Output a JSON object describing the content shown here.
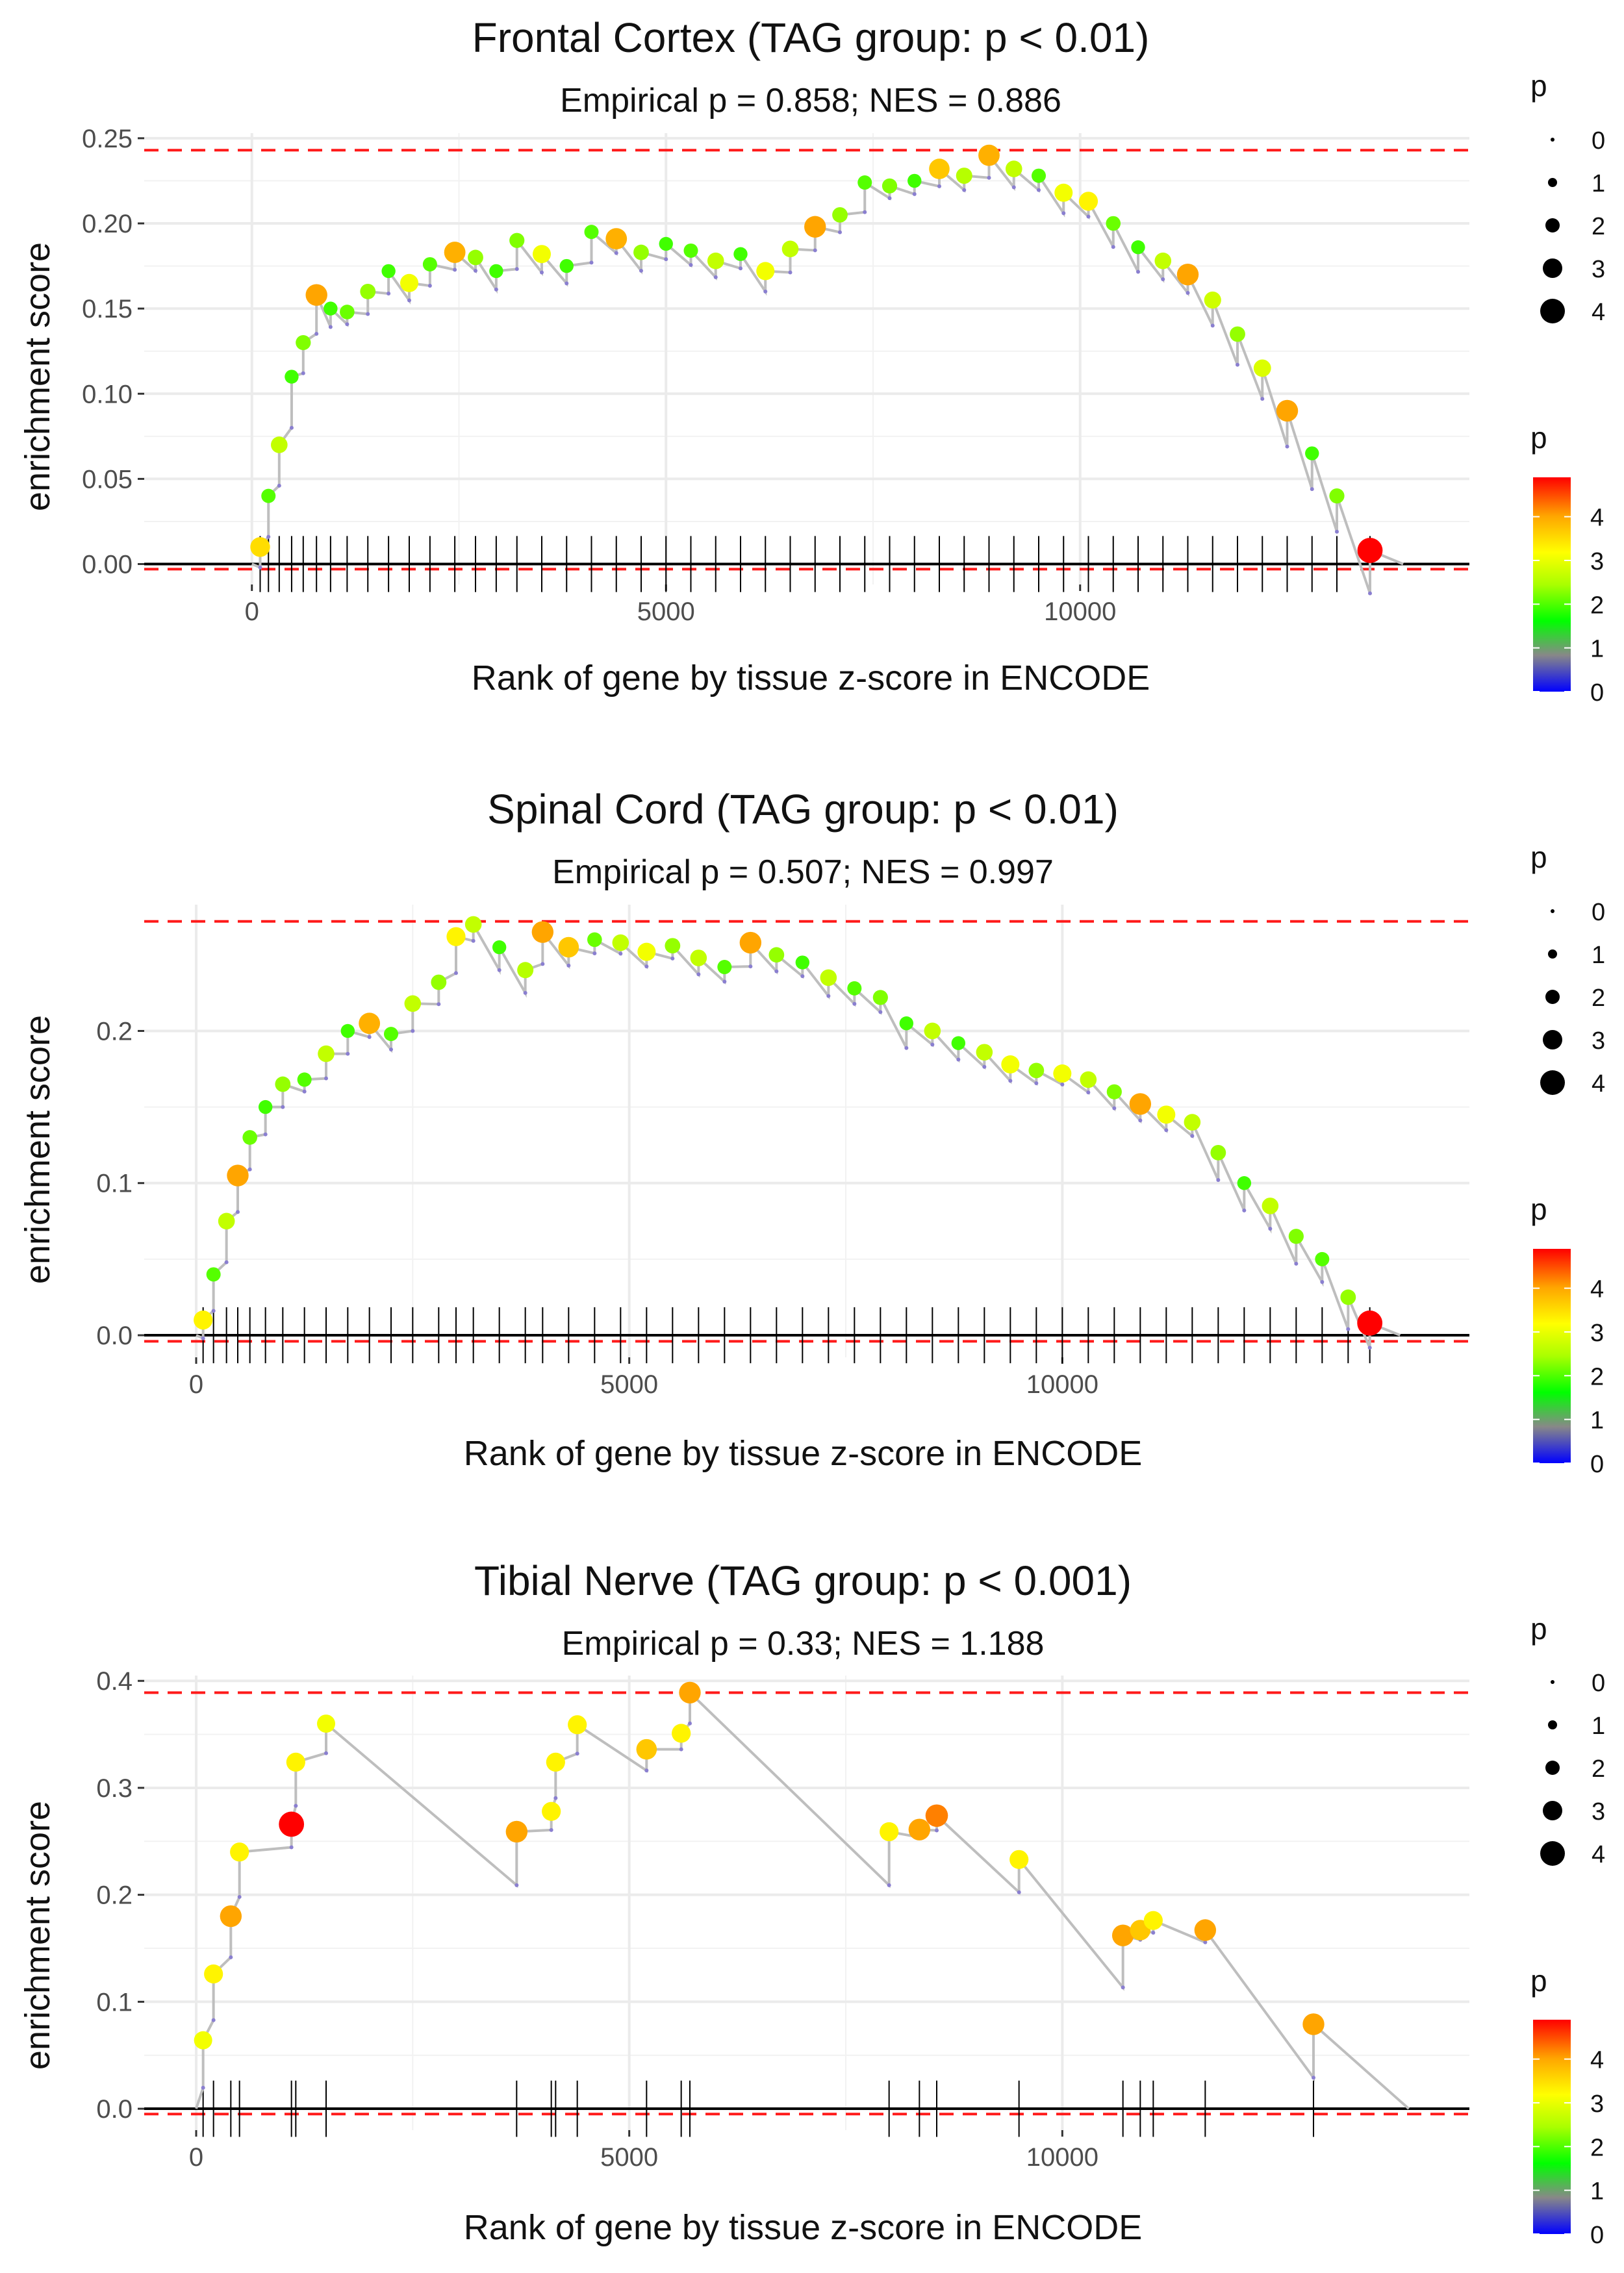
{
  "colors": {
    "line": "#bebebe",
    "threshold": "#ff1a1a",
    "grid": "#ebebeb",
    "tick_text": "#4d4d4d",
    "scale": [
      "#0000ff",
      "#888888",
      "#00ff00",
      "#aaff00",
      "#ffff00",
      "#ffa500",
      "#ff0000"
    ]
  },
  "chart_data": [
    {
      "type": "line",
      "title": "Frontal Cortex (TAG group: p < 0.01)",
      "subtitle": "Empirical p = 0.858; NES = 0.886",
      "xlabel": "Rank of gene by tissue z-score in ENCODE",
      "ylabel": "enrichment score",
      "xlim": [
        -1300,
        14700
      ],
      "ylim": [
        -0.012,
        0.253
      ],
      "x_ticks": [
        0,
        5000,
        10000
      ],
      "x_tick_labels": [
        "0",
        "5000",
        "10000"
      ],
      "y_ticks": [
        0.0,
        0.05,
        0.1,
        0.15,
        0.2,
        0.25
      ],
      "y_tick_labels": [
        "0.00",
        "0.05",
        "0.10",
        "0.15",
        "0.20",
        "0.25"
      ],
      "max_es_line": 0.243,
      "min_es_line": -0.003,
      "x_end": 13900,
      "gene_ranks": [
        100,
        200,
        330,
        480,
        620,
        780,
        950,
        1150,
        1400,
        1650,
        1900,
        2150,
        2450,
        2700,
        2950,
        3200,
        3500,
        3800,
        4100,
        4400,
        4700,
        5000,
        5300,
        5600,
        5900,
        6200,
        6500,
        6800,
        7100,
        7400,
        7700,
        8000,
        8300,
        8600,
        8900,
        9200,
        9500,
        9800,
        10100,
        10400,
        10700,
        11000,
        11300,
        11600,
        11900,
        12200,
        12500,
        12800,
        13100,
        13500
      ],
      "scores": [
        0.01,
        0.04,
        0.07,
        0.11,
        0.13,
        0.158,
        0.15,
        0.148,
        0.16,
        0.172,
        0.165,
        0.176,
        0.183,
        0.18,
        0.172,
        0.19,
        0.182,
        0.175,
        0.195,
        0.191,
        0.183,
        0.188,
        0.184,
        0.178,
        0.182,
        0.172,
        0.185,
        0.198,
        0.205,
        0.224,
        0.222,
        0.225,
        0.232,
        0.228,
        0.24,
        0.232,
        0.228,
        0.218,
        0.213,
        0.2,
        0.186,
        0.178,
        0.17,
        0.155,
        0.135,
        0.115,
        0.09,
        0.065,
        0.04,
        0.008
      ],
      "point_p": [
        3.4,
        2.0,
        2.6,
        1.9,
        2.2,
        3.9,
        1.9,
        2.1,
        2.3,
        1.9,
        3.0,
        2.0,
        3.8,
        2.3,
        1.9,
        2.2,
        3.0,
        1.9,
        2.0,
        3.8,
        2.3,
        1.9,
        2.0,
        2.6,
        1.9,
        3.0,
        2.6,
        3.9,
        2.3,
        2.0,
        2.2,
        1.9,
        3.6,
        2.5,
        3.8,
        2.6,
        2.0,
        3.0,
        3.2,
        2.1,
        1.9,
        2.6,
        3.9,
        2.7,
        2.3,
        2.8,
        3.9,
        1.9,
        2.2,
        4.8
      ],
      "legend_size_title": "p",
      "legend_size_labels": [
        "0",
        "1",
        "2",
        "3",
        "4"
      ],
      "legend_color_title": "p",
      "legend_color_labels": [
        "4",
        "3",
        "2",
        "1",
        "0"
      ]
    },
    {
      "type": "line",
      "title": "Spinal Cord (TAG group: p < 0.01)",
      "subtitle": "Empirical p = 0.507; NES = 0.997",
      "xlabel": "Rank of gene by tissue z-score in ENCODE",
      "ylabel": "enrichment score",
      "xlim": [
        -600,
        14700
      ],
      "ylim": [
        -0.0145,
        0.283
      ],
      "x_ticks": [
        0,
        5000,
        10000
      ],
      "x_tick_labels": [
        "0",
        "5000",
        "10000"
      ],
      "y_ticks": [
        0.0,
        0.1,
        0.2
      ],
      "y_tick_labels": [
        "0.0",
        "0.1",
        "0.2"
      ],
      "max_es_line": 0.272,
      "min_es_line": -0.004,
      "x_end": 13900,
      "gene_ranks": [
        80,
        200,
        350,
        480,
        620,
        800,
        1000,
        1250,
        1500,
        1750,
        2000,
        2250,
        2500,
        2800,
        3000,
        3200,
        3500,
        3800,
        4000,
        4300,
        4600,
        4900,
        5200,
        5500,
        5800,
        6100,
        6400,
        6700,
        7000,
        7300,
        7600,
        7900,
        8200,
        8500,
        8800,
        9100,
        9400,
        9700,
        10000,
        10300,
        10600,
        10900,
        11200,
        11500,
        11800,
        12100,
        12400,
        12700,
        13000,
        13300,
        13550
      ],
      "scores": [
        0.01,
        0.04,
        0.075,
        0.105,
        0.13,
        0.15,
        0.165,
        0.168,
        0.185,
        0.2,
        0.205,
        0.198,
        0.218,
        0.232,
        0.262,
        0.27,
        0.255,
        0.24,
        0.265,
        0.255,
        0.26,
        0.258,
        0.252,
        0.256,
        0.248,
        0.242,
        0.258,
        0.25,
        0.245,
        0.235,
        0.228,
        0.222,
        0.205,
        0.2,
        0.192,
        0.186,
        0.178,
        0.174,
        0.172,
        0.168,
        0.16,
        0.152,
        0.145,
        0.14,
        0.12,
        0.1,
        0.085,
        0.065,
        0.05,
        0.025,
        0.008
      ],
      "point_p": [
        3.2,
        2.0,
        2.6,
        3.9,
        2.1,
        1.9,
        2.3,
        2.0,
        2.6,
        1.9,
        3.8,
        2.0,
        2.6,
        2.3,
        3.2,
        2.6,
        1.9,
        2.5,
        3.9,
        3.6,
        2.1,
        2.6,
        3.0,
        2.3,
        2.6,
        2.0,
        3.9,
        2.3,
        1.9,
        2.6,
        2.0,
        2.2,
        1.9,
        2.6,
        1.9,
        2.6,
        3.0,
        2.3,
        3.0,
        2.6,
        2.2,
        3.9,
        3.0,
        2.6,
        2.3,
        1.9,
        2.6,
        2.2,
        2.0,
        2.3,
        4.8
      ],
      "legend_size_title": "p",
      "legend_size_labels": [
        "0",
        "1",
        "2",
        "3",
        "4"
      ],
      "legend_color_title": "p",
      "legend_color_labels": [
        "4",
        "3",
        "2",
        "1",
        "0"
      ]
    },
    {
      "type": "line",
      "title": "Tibial Nerve (TAG group: p < 0.001)",
      "subtitle": "Empirical p = 0.33; NES = 1.188",
      "xlabel": "Rank of gene by tissue z-score in ENCODE",
      "ylabel": "enrichment score",
      "xlim": [
        -600,
        14700
      ],
      "ylim": [
        -0.02,
        0.405
      ],
      "x_ticks": [
        0,
        5000,
        10000
      ],
      "x_tick_labels": [
        "0",
        "5000",
        "10000"
      ],
      "y_ticks": [
        0.0,
        0.1,
        0.2,
        0.3,
        0.4
      ],
      "y_tick_labels": [
        "0.0",
        "0.1",
        "0.2",
        "0.3",
        "0.4"
      ],
      "max_es_line": 0.389,
      "min_es_line": -0.005,
      "x_end": 14000,
      "gene_ranks": [
        80,
        200,
        400,
        500,
        1100,
        1150,
        1500,
        3700,
        4100,
        4150,
        4400,
        5200,
        5600,
        5700,
        8000,
        8350,
        8550,
        9500,
        10700,
        10900,
        11050,
        11650,
        12900
      ],
      "scores": [
        0.064,
        0.126,
        0.18,
        0.24,
        0.266,
        0.324,
        0.36,
        0.259,
        0.278,
        0.324,
        0.359,
        0.336,
        0.351,
        0.389,
        0.259,
        0.261,
        0.274,
        0.233,
        0.162,
        0.167,
        0.176,
        0.167,
        0.079
      ],
      "point_p": [
        3.0,
        3.2,
        3.9,
        3.2,
        4.8,
        3.2,
        3.0,
        3.9,
        3.2,
        3.2,
        3.2,
        3.6,
        3.2,
        3.9,
        3.2,
        3.9,
        4.1,
        3.2,
        3.9,
        3.6,
        3.2,
        3.9,
        3.9
      ],
      "legend_size_title": "p",
      "legend_size_labels": [
        "0",
        "1",
        "2",
        "3",
        "4"
      ],
      "legend_color_title": "p",
      "legend_color_labels": [
        "4",
        "3",
        "2",
        "1",
        "0"
      ]
    }
  ]
}
